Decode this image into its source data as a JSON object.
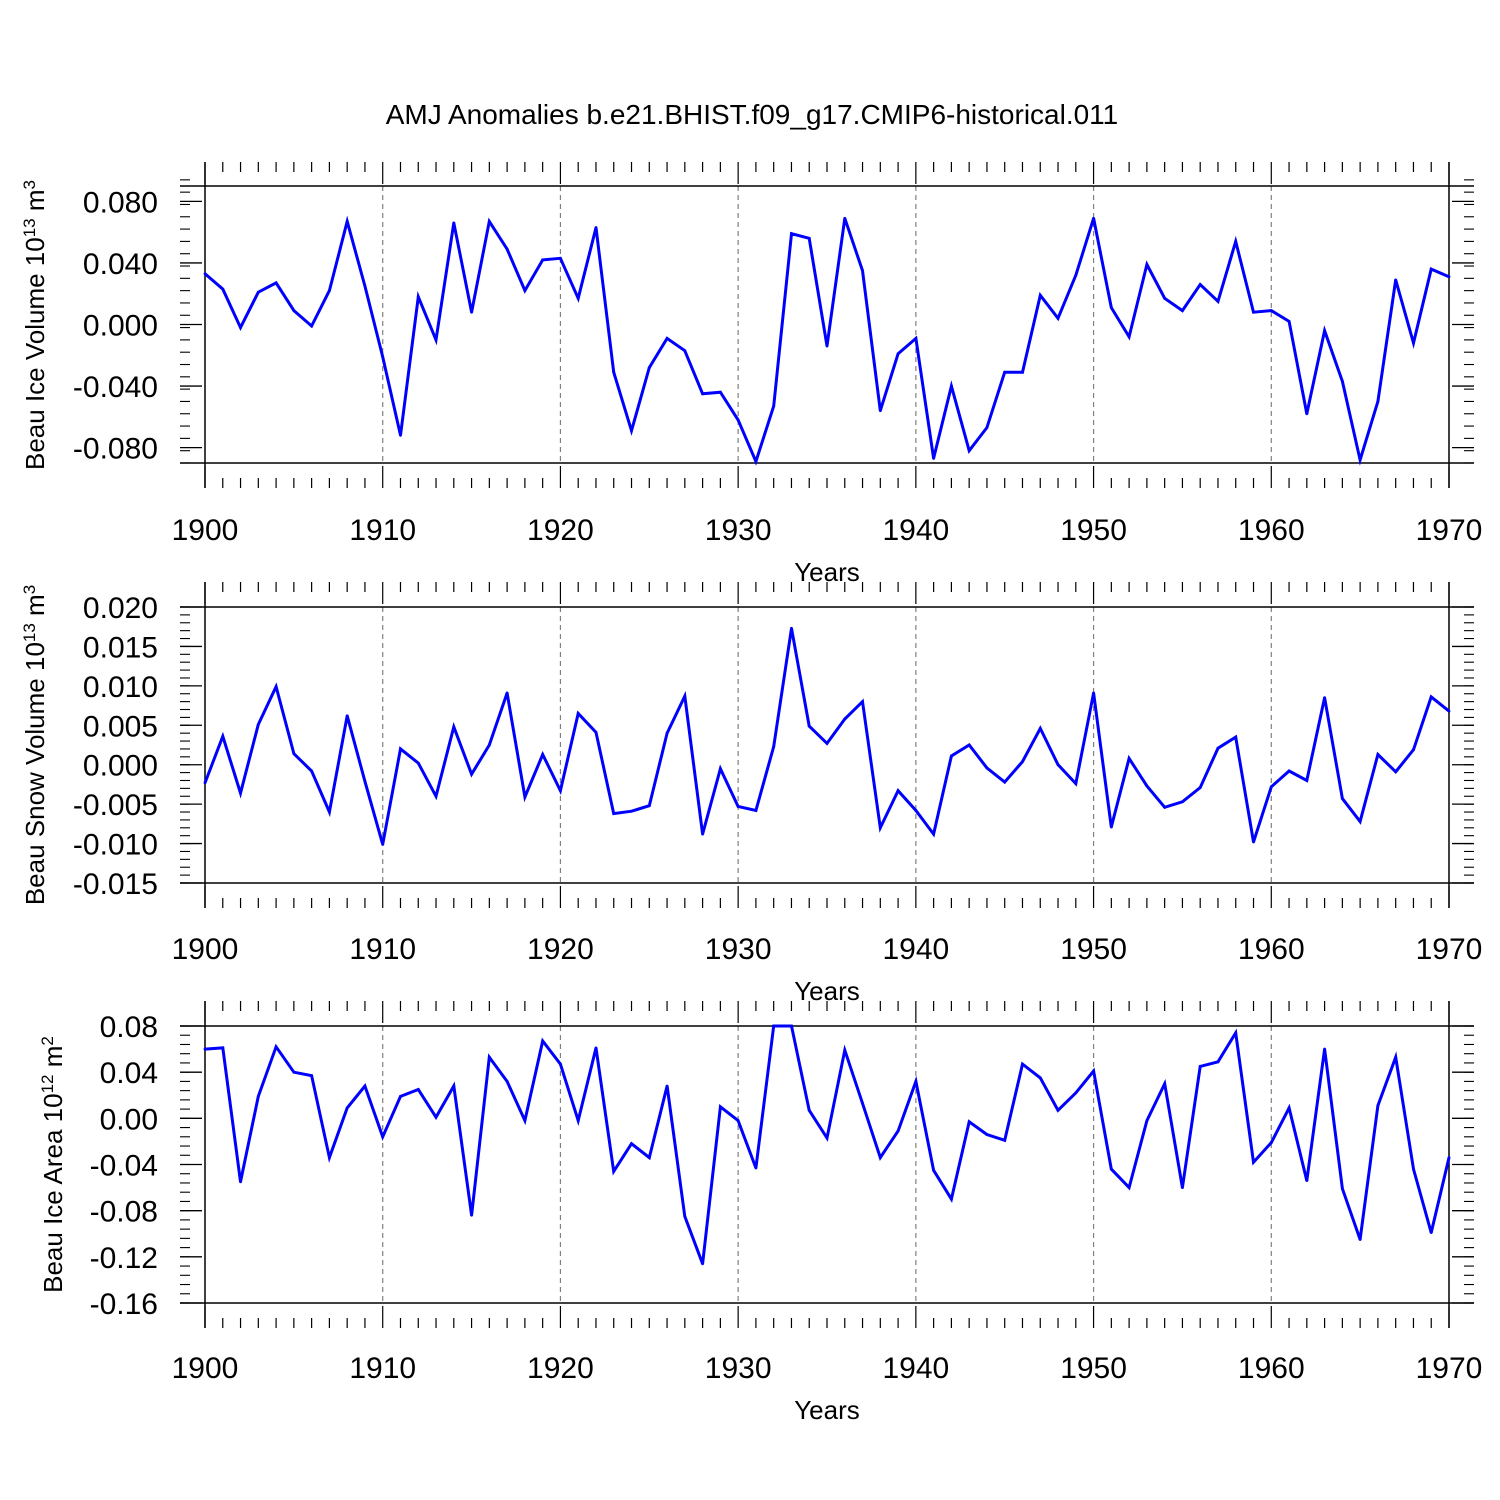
{
  "figure_title": "AMJ Anomalies b.e21.BHIST.f09_g17.CMIP6-historical.011",
  "colors": {
    "series": "#0000ff",
    "axis": "#000000",
    "grid": "#808080",
    "background": "#ffffff"
  },
  "chart_data": [
    {
      "type": "line",
      "name": "beau-ice-volume",
      "ylabel": "Beau Ice Volume 10",
      "ylabel_exp": "13",
      "ylabel_unit": "m",
      "ylabel_unit_exp": "3",
      "xlabel": "Years",
      "xlim": [
        1900,
        1970
      ],
      "ylim": [
        -0.09,
        0.09
      ],
      "yticks": [
        -0.08,
        -0.04,
        0.0,
        0.04,
        0.08
      ],
      "ytick_labels": [
        "-0.080",
        "-0.040",
        "0.000",
        "0.040",
        "0.080"
      ],
      "yminor_step": 0.008,
      "xticks": [
        1900,
        1910,
        1920,
        1930,
        1940,
        1950,
        1960,
        1970
      ],
      "xtick_labels": [
        "1900",
        "1910",
        "1920",
        "1930",
        "1940",
        "1950",
        "1960",
        "1970"
      ],
      "grid_x": true,
      "x_start": 1900,
      "values": [
        0.033,
        0.023,
        -0.002,
        0.021,
        0.027,
        0.009,
        -0.001,
        0.022,
        0.067,
        0.025,
        -0.021,
        -0.072,
        0.018,
        -0.01,
        0.066,
        0.008,
        0.067,
        0.049,
        0.022,
        0.042,
        0.043,
        0.017,
        0.063,
        -0.031,
        -0.069,
        -0.028,
        -0.009,
        -0.017,
        -0.045,
        -0.044,
        -0.062,
        -0.089,
        -0.053,
        0.059,
        0.056,
        -0.014,
        0.069,
        0.035,
        -0.056,
        -0.019,
        -0.009,
        -0.087,
        -0.04,
        -0.082,
        -0.067,
        -0.031,
        -0.031,
        0.019,
        0.004,
        0.032,
        0.069,
        0.011,
        -0.008,
        0.039,
        0.017,
        0.009,
        0.026,
        0.015,
        0.054,
        0.008,
        0.009,
        0.002,
        -0.058,
        -0.004,
        -0.037,
        -0.088,
        -0.05,
        0.029,
        -0.012,
        0.036,
        0.031
      ]
    },
    {
      "type": "line",
      "name": "beau-snow-volume",
      "ylabel": "Beau Snow Volume 10",
      "ylabel_exp": "13",
      "ylabel_unit": "m",
      "ylabel_unit_exp": "3",
      "xlabel": "Years",
      "xlim": [
        1900,
        1970
      ],
      "ylim": [
        -0.015,
        0.02
      ],
      "yticks": [
        -0.015,
        -0.01,
        -0.005,
        0.0,
        0.005,
        0.01,
        0.015,
        0.02
      ],
      "ytick_labels": [
        "-0.015",
        "-0.010",
        "-0.005",
        "0.000",
        "0.005",
        "0.010",
        "0.015",
        "0.020"
      ],
      "yminor_step": 0.001,
      "xticks": [
        1900,
        1910,
        1920,
        1930,
        1940,
        1950,
        1960,
        1970
      ],
      "xtick_labels": [
        "1900",
        "1910",
        "1920",
        "1930",
        "1940",
        "1950",
        "1960",
        "1970"
      ],
      "grid_x": true,
      "x_start": 1900,
      "values": [
        -0.0023,
        0.0036,
        -0.0036,
        0.0051,
        0.0099,
        0.0014,
        -0.0008,
        -0.006,
        0.0062,
        -0.0021,
        -0.0101,
        0.002,
        0.0002,
        -0.004,
        0.0048,
        -0.0012,
        0.0025,
        0.0091,
        -0.0041,
        0.0013,
        -0.0033,
        0.0065,
        0.0041,
        -0.0062,
        -0.0059,
        -0.0052,
        0.004,
        0.0087,
        -0.0088,
        -0.0005,
        -0.0053,
        -0.0058,
        0.0023,
        0.0173,
        0.0049,
        0.0027,
        0.0058,
        0.008,
        -0.008,
        -0.0033,
        -0.0058,
        -0.0088,
        0.0011,
        0.0025,
        -0.0004,
        -0.0022,
        0.0004,
        0.0046,
        0.0,
        -0.0024,
        0.0091,
        -0.0079,
        0.0008,
        -0.0027,
        -0.0054,
        -0.0047,
        -0.0029,
        0.0021,
        0.0035,
        -0.0098,
        -0.0028,
        -0.0008,
        -0.002,
        0.0085,
        -0.0043,
        -0.0072,
        0.0013,
        -0.0009,
        0.0019,
        0.0086,
        0.0068
      ]
    },
    {
      "type": "line",
      "name": "beau-ice-area",
      "ylabel": "Beau Ice Area 10",
      "ylabel_exp": "12",
      "ylabel_unit": "m",
      "ylabel_unit_exp": "2",
      "xlabel": "Years",
      "xlim": [
        1900,
        1970
      ],
      "ylim": [
        -0.16,
        0.08
      ],
      "yticks": [
        -0.16,
        -0.12,
        -0.08,
        -0.04,
        0.0,
        0.04,
        0.08
      ],
      "ytick_labels": [
        "-0.16",
        "-0.12",
        "-0.08",
        "-0.04",
        "0.00",
        "0.04",
        "0.08"
      ],
      "yminor_step": 0.008,
      "xticks": [
        1900,
        1910,
        1920,
        1930,
        1940,
        1950,
        1960,
        1970
      ],
      "xtick_labels": [
        "1900",
        "1910",
        "1920",
        "1930",
        "1940",
        "1950",
        "1960",
        "1970"
      ],
      "grid_x": true,
      "x_start": 1900,
      "values": [
        0.06,
        0.061,
        -0.055,
        0.019,
        0.062,
        0.04,
        0.037,
        -0.034,
        0.009,
        0.028,
        -0.016,
        0.019,
        0.025,
        0.001,
        0.028,
        -0.084,
        0.053,
        0.032,
        -0.002,
        0.067,
        0.047,
        -0.002,
        0.061,
        -0.046,
        -0.022,
        -0.034,
        0.028,
        -0.085,
        -0.126,
        0.01,
        -0.002,
        -0.043,
        0.08,
        0.08,
        0.007,
        -0.017,
        0.059,
        0.013,
        -0.034,
        -0.011,
        0.032,
        -0.045,
        -0.07,
        -0.003,
        -0.014,
        -0.019,
        0.047,
        0.035,
        0.007,
        0.022,
        0.041,
        -0.044,
        -0.06,
        -0.002,
        0.03,
        -0.06,
        0.045,
        0.049,
        0.074,
        -0.038,
        -0.021,
        0.009,
        -0.054,
        0.06,
        -0.061,
        -0.105,
        0.011,
        0.053,
        -0.044,
        -0.099,
        -0.034
      ]
    }
  ]
}
